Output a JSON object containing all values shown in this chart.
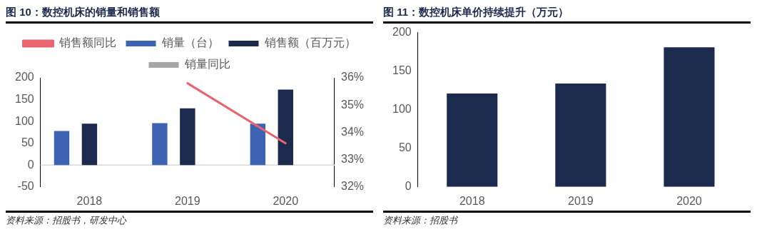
{
  "chart_data": [
    {
      "type": "bar",
      "title": "图 10：数控机床的销量和销售额",
      "categories": [
        "2018",
        "2019",
        "2020"
      ],
      "series": [
        {
          "name": "销量（台）",
          "color": "#3d63b5",
          "values": [
            78,
            96,
            95
          ]
        },
        {
          "name": "销售额（百万元）",
          "color": "#1c2a4e",
          "values": [
            95,
            130,
            173
          ]
        },
        {
          "name": "销量同比",
          "color": "#a6a6a6",
          "values": [
            null,
            null,
            null
          ]
        },
        {
          "name": "销售额同比",
          "type": "line",
          "axis": "y2",
          "color": "#e8646e",
          "marker": "none",
          "values": [
            null,
            35.8,
            33.6
          ]
        }
      ],
      "ylim": [
        -50,
        200
      ],
      "yticks": [
        -50,
        0,
        50,
        100,
        150,
        200
      ],
      "y2lim": [
        32,
        36
      ],
      "y2ticks": [
        {
          "value": 32,
          "label": "32%"
        },
        {
          "value": 33,
          "label": "33%"
        },
        {
          "value": 34,
          "label": "34%"
        },
        {
          "value": 35,
          "label": "35%"
        },
        {
          "value": 36,
          "label": "36%"
        }
      ],
      "grid": false,
      "legend": "top",
      "annotations": [
        "资料来源：招股书，研发中心"
      ]
    },
    {
      "type": "bar",
      "title": "图 11：数控机床单价持续提升（万元）",
      "categories": [
        "2018",
        "2019",
        "2020"
      ],
      "series": [
        {
          "color": "#1c2a4e",
          "values": [
            121,
            134,
            181
          ]
        }
      ],
      "ylim": [
        0,
        200
      ],
      "yticks": [
        0,
        50,
        100,
        150,
        200
      ],
      "grid": false,
      "legend": false,
      "annotations": [
        "资料来源：招股书"
      ]
    }
  ]
}
